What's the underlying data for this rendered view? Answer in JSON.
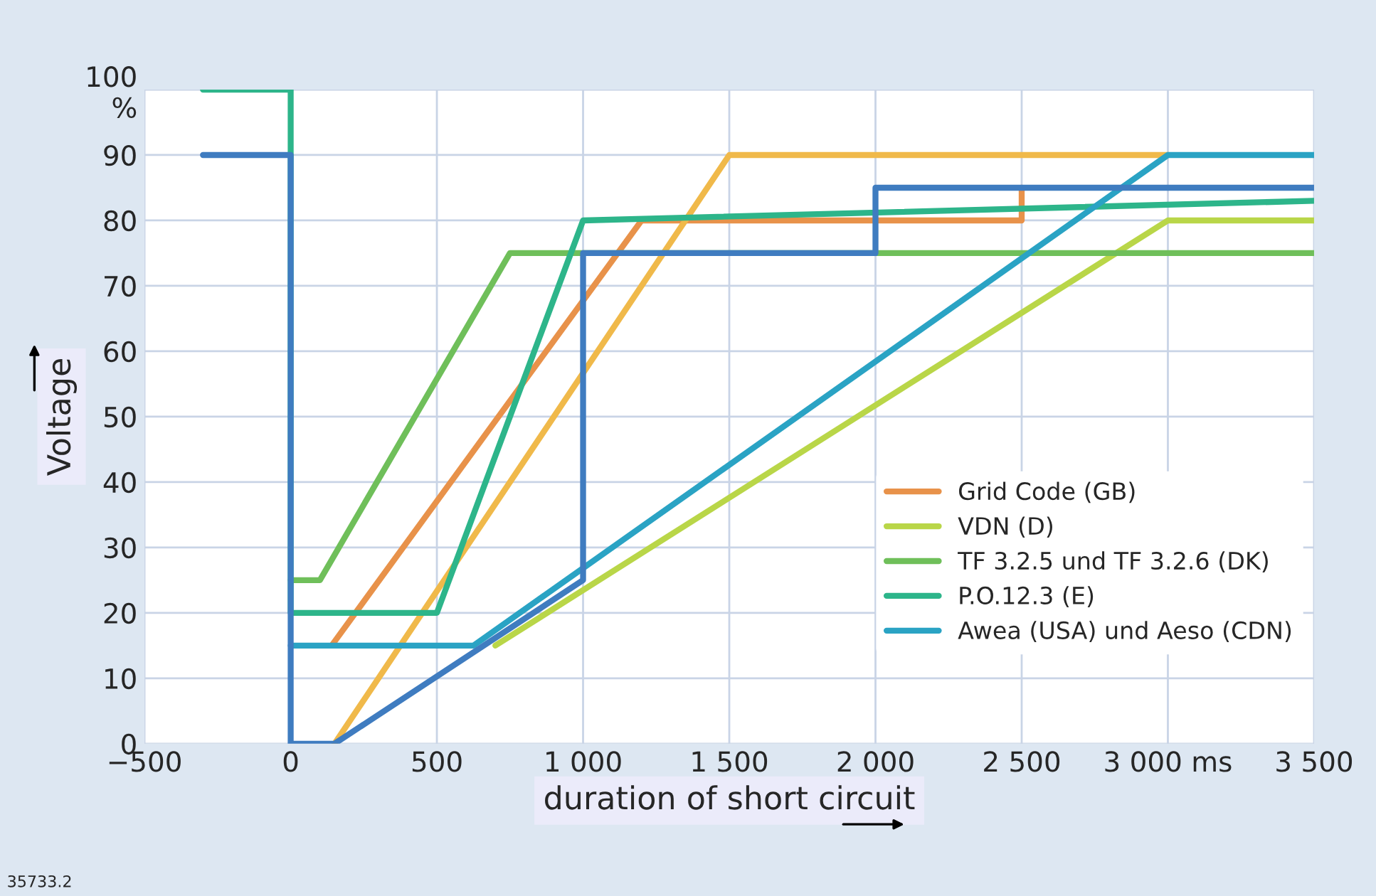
{
  "chart_data": {
    "type": "line",
    "xlabel": "duration of short circuit",
    "ylabel": "Voltage",
    "xlim": [
      -500,
      3500
    ],
    "ylim": [
      0,
      100
    ],
    "xticks": [
      {
        "value": -500,
        "label": "−500"
      },
      0,
      500,
      {
        "value": 1000,
        "label": "1 000"
      },
      {
        "value": 1500,
        "label": "1 500"
      },
      {
        "value": 2000,
        "label": "2 000"
      },
      {
        "value": 2500,
        "label": "2 500"
      },
      {
        "value": 3000,
        "label": "3 000 ms"
      },
      {
        "value": 3500,
        "label": "3 500"
      }
    ],
    "yticks": [
      0,
      10,
      20,
      30,
      40,
      50,
      60,
      70,
      80,
      90,
      {
        "value": 100,
        "label": "100\n%"
      }
    ],
    "grid": true,
    "legend": "bottom right",
    "line_style": "solid",
    "series": [
      {
        "name": "Grid Code (GB)",
        "color": "#e8924a",
        "x": [
          140,
          1200,
          2500,
          2500
        ],
        "values": [
          15,
          80,
          80,
          85
        ]
      },
      {
        "color": "#f0b94a",
        "x": [
          150,
          1500,
          3000
        ],
        "values": [
          0,
          90,
          90
        ]
      },
      {
        "name": "VDN (D)",
        "color": "#b9d648",
        "x": [
          700,
          3000,
          3500
        ],
        "values": [
          15,
          80,
          80
        ]
      },
      {
        "name": "TF 3.2.5 und TF 3.2.6 (DK)",
        "color": "#6fbf5a",
        "x": [
          0,
          100,
          750,
          3500
        ],
        "values": [
          25,
          25,
          75,
          75
        ]
      },
      {
        "name": "P.O.12.3 (E)",
        "color": "#2db58a",
        "x": [
          -300,
          0,
          0,
          500,
          1000,
          3500
        ],
        "values": [
          100,
          100,
          20,
          20,
          80,
          83
        ]
      },
      {
        "name": "Awea (USA) und Aeso (CDN)",
        "color": "#2aa3c4",
        "x": [
          0,
          625,
          3000,
          3500
        ],
        "values": [
          15,
          15,
          90,
          90
        ]
      },
      {
        "color": "#3f7cc0",
        "x": [
          -300,
          0,
          0,
          150,
          1000,
          1000,
          2000,
          2000,
          3500
        ],
        "values": [
          90,
          90,
          0,
          0,
          25,
          75,
          75,
          85,
          85
        ]
      }
    ],
    "annotations": [
      "35733.2"
    ]
  }
}
